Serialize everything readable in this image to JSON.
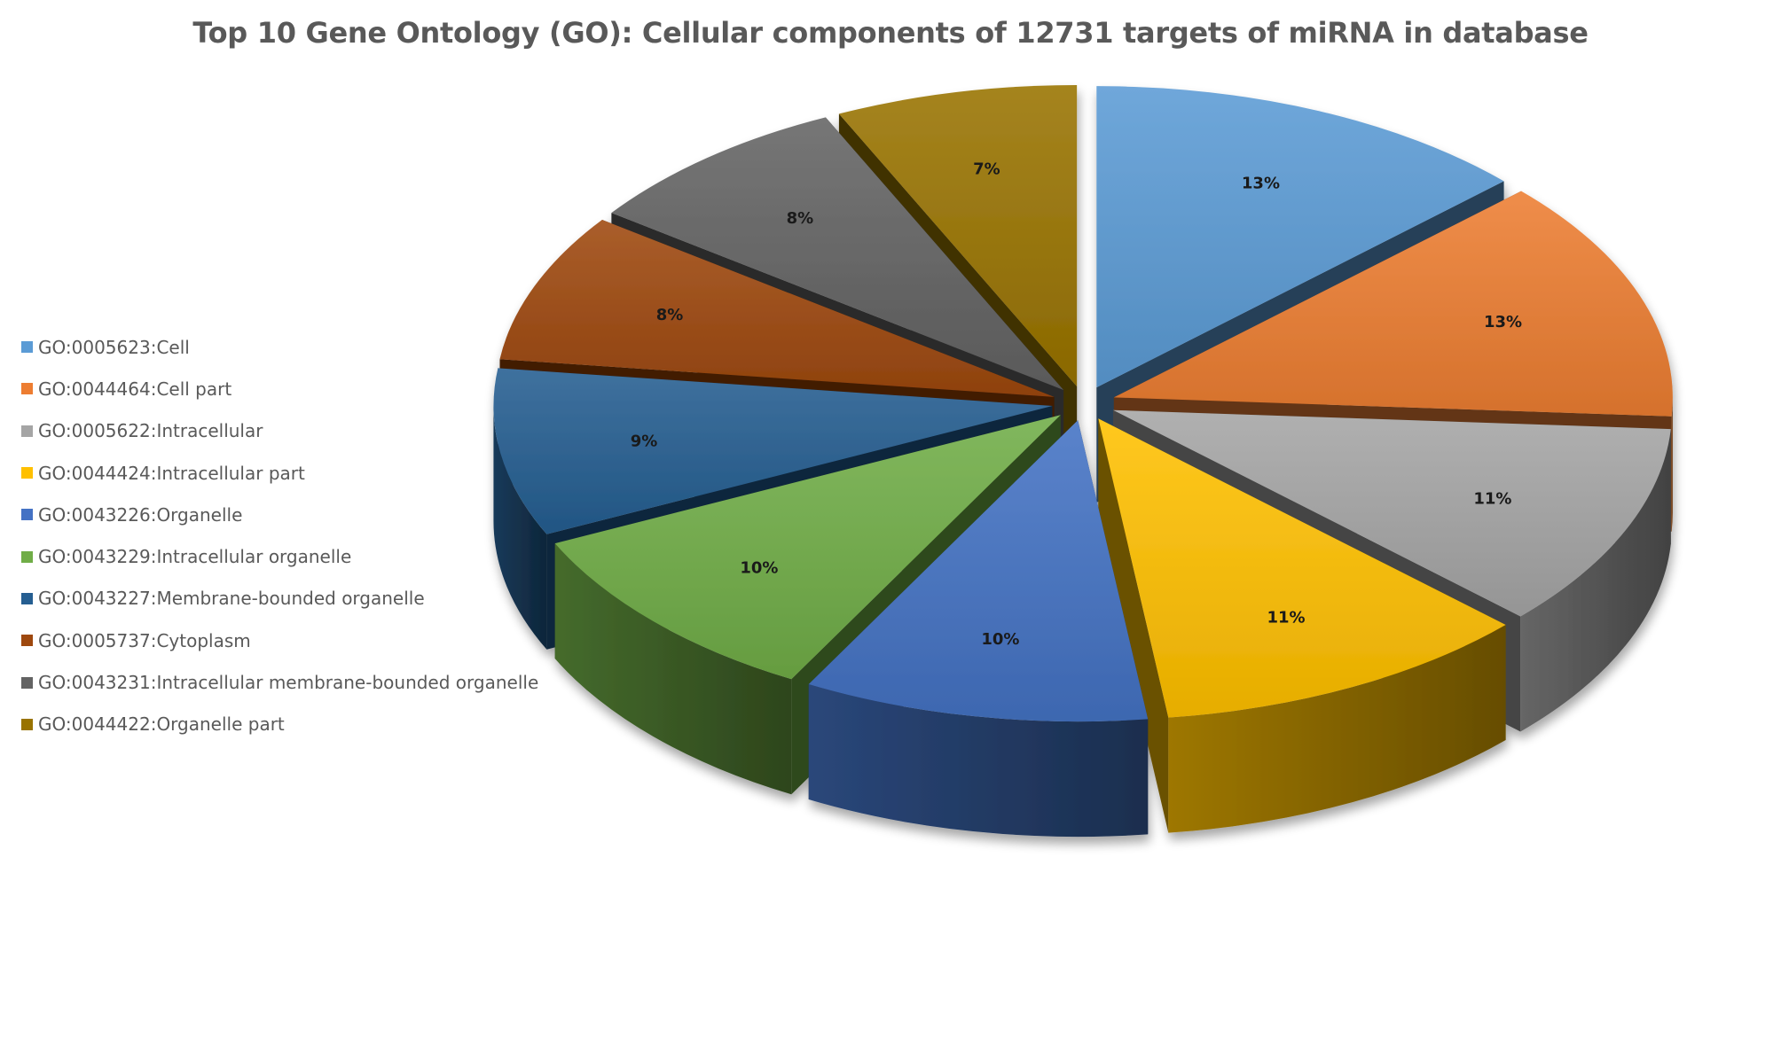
{
  "chart_data": {
    "type": "pie",
    "title": "Top 10 Gene Ontology (GO):  Cellular components of 12731 targets of miRNA in database",
    "legend_position": "left",
    "slices": [
      {
        "name": "GO:0005623:Cell",
        "value": 13,
        "label": "13%",
        "color": "#5b9bd5"
      },
      {
        "name": "GO:0044464:Cell part",
        "value": 13,
        "label": "13%",
        "color": "#ed7d31"
      },
      {
        "name": "GO:0005622:Intracellular",
        "value": 11,
        "label": "11%",
        "color": "#a5a5a5"
      },
      {
        "name": "GO:0044424:Intracellular part",
        "value": 11,
        "label": "11%",
        "color": "#ffc000"
      },
      {
        "name": "GO:0043226:Organelle",
        "value": 10,
        "label": "10%",
        "color": "#4472c4"
      },
      {
        "name": "GO:0043229:Intracellular organelle",
        "value": 10,
        "label": "10%",
        "color": "#70ad47"
      },
      {
        "name": "GO:0043227:Membrane-bounded organelle",
        "value": 9,
        "label": "9%",
        "color": "#255e91"
      },
      {
        "name": "GO:0005737:Cytoplasm",
        "value": 8,
        "label": "8%",
        "color": "#9e480e"
      },
      {
        "name": "GO:0043231:Intracellular membrane-bounded organelle",
        "value": 8,
        "label": "8%",
        "color": "#636363"
      },
      {
        "name": "GO:0044422:Organelle part",
        "value": 7,
        "label": "7%",
        "color": "#997300"
      }
    ]
  }
}
